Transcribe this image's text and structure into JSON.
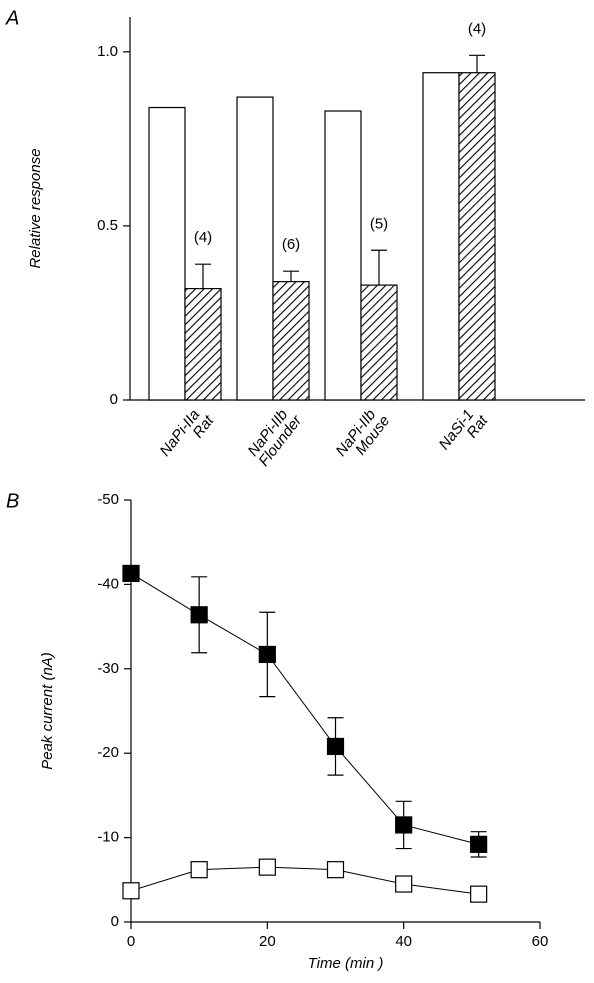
{
  "chart_data": [
    {
      "type": "bar",
      "panel_label": "A",
      "y_label": "Relative response",
      "categories": [
        [
          "NaPi-IIa",
          "Rat"
        ],
        [
          "NaPi-IIb",
          "Flounder"
        ],
        [
          "NaPi-IIb",
          "Mouse"
        ],
        [
          "NaSi-1",
          "Rat"
        ]
      ],
      "series": [
        {
          "color": "#ffffff",
          "values": [
            0.84,
            0.87,
            0.83,
            0.94
          ]
        },
        {
          "color": "#000000",
          "pattern": "hatch",
          "values": [
            0.32,
            0.34,
            0.33,
            0.94
          ],
          "errors": [
            0.07,
            0.03,
            0.1,
            0.05
          ],
          "n_labels": [
            "(4)",
            "(6)",
            "(5)",
            "(4)"
          ]
        }
      ],
      "ylim": [
        0,
        1.1
      ],
      "yticks": [
        0,
        0.5,
        {
          "value": 1,
          "label": "1.0"
        }
      ]
    },
    {
      "type": "line",
      "panel_label": "B",
      "y_label": "Peak current (nA)",
      "x_label": "Time (min )",
      "x": [
        0,
        10,
        20,
        30,
        40,
        51
      ],
      "series": [
        {
          "color": "#000000",
          "marker": "filled-square",
          "values": [
            -41.3,
            -36.4,
            -31.7,
            -20.8,
            -11.5,
            -9.2
          ],
          "errors": [
            null,
            4.5,
            5,
            3.4,
            2.8,
            1.5
          ]
        },
        {
          "color": "#ffffff",
          "marker": "open-square",
          "values": [
            -3.7,
            -6.2,
            -6.5,
            -6.2,
            -4.5,
            -3.3
          ]
        }
      ],
      "xlim": [
        0,
        60
      ],
      "xticks": [
        0,
        20,
        40,
        60
      ],
      "ylim": [
        0,
        -50
      ],
      "yticks": [
        0,
        -10,
        -20,
        -30,
        -40,
        -50
      ]
    }
  ]
}
